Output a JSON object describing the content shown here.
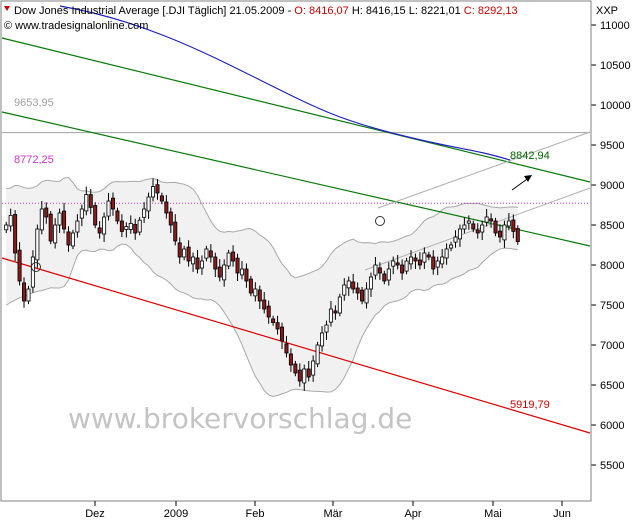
{
  "header": {
    "instrument": "Dow Jones Industrial Average [.DJI  Täglich]",
    "date": "21.05.2009",
    "open_label": "O:",
    "open": "8416,07",
    "high_label": "H:",
    "high": "8416,15",
    "low_label": "L:",
    "low": "8221,01",
    "close_label": "C:",
    "close": "8292,13",
    "copyright": "© www.tradesignalonline.com",
    "symbol": "XXP"
  },
  "watermark": "www.brokervorschlag.de",
  "colors": {
    "up": "#ffffff",
    "down": "#8b1a1a",
    "ma200": "#2020c0",
    "trend_green": "#0a7a0a",
    "trend_red": "#dd0000",
    "bollinger": "#a8a8a8",
    "level_magenta": "#cc33cc",
    "level_gray": "#a0a0a0",
    "price_label_green": "#006600",
    "price_label_red": "#cc0000"
  },
  "chart_data": {
    "type": "candlestick",
    "y_axis_ticks": [
      "11000",
      "10500",
      "10000",
      "9500",
      "9000",
      "8500",
      "8000",
      "7500",
      "7000",
      "6500",
      "6000",
      "5500"
    ],
    "y_axis_values": [
      11000,
      10500,
      10000,
      9500,
      9000,
      8500,
      8000,
      7500,
      7000,
      6500,
      6000,
      5500
    ],
    "x_axis_labels": [
      "Dez",
      "2009",
      "Feb",
      "Mär",
      "Apr",
      "Mai",
      "Jun"
    ],
    "ylim": [
      5050,
      11300
    ],
    "levels": [
      {
        "label": "9653,95",
        "value": 9653.95
      },
      {
        "label": "8772,25",
        "value": 8772.25
      }
    ],
    "line_labels": [
      {
        "label": "8842,94",
        "value": 8842.94
      },
      {
        "label": "5919,79",
        "value": 5919.79
      }
    ],
    "closes": [
      8500,
      8620,
      8150,
      7800,
      7550,
      7700,
      8100,
      8450,
      8700,
      8600,
      8300,
      8500,
      8650,
      8450,
      8250,
      8400,
      8550,
      8700,
      8880,
      8720,
      8500,
      8400,
      8600,
      8800,
      8700,
      8550,
      8420,
      8480,
      8520,
      8400,
      8560,
      8700,
      8850,
      8980,
      8900,
      8800,
      8650,
      8500,
      8300,
      8100,
      8200,
      8050,
      8100,
      7950,
      8050,
      8200,
      8100,
      7950,
      7850,
      8000,
      8150,
      8050,
      7900,
      7950,
      7800,
      7650,
      7700,
      7550,
      7450,
      7350,
      7280,
      7200,
      7050,
      6900,
      6750,
      6650,
      6550,
      6700,
      6600,
      6800,
      7000,
      7150,
      7250,
      7450,
      7400,
      7600,
      7750,
      7800,
      7700,
      7650,
      7550,
      7700,
      7850,
      8000,
      7900,
      7800,
      7950,
      8050,
      8000,
      7900,
      8050,
      8100,
      8050,
      8000,
      8150,
      8100,
      7950,
      8050,
      8100,
      8200,
      8250,
      8350,
      8450,
      8500,
      8550,
      8450,
      8400,
      8500,
      8600,
      8550,
      8400,
      8350,
      8500,
      8550,
      8420,
      8292
    ]
  }
}
